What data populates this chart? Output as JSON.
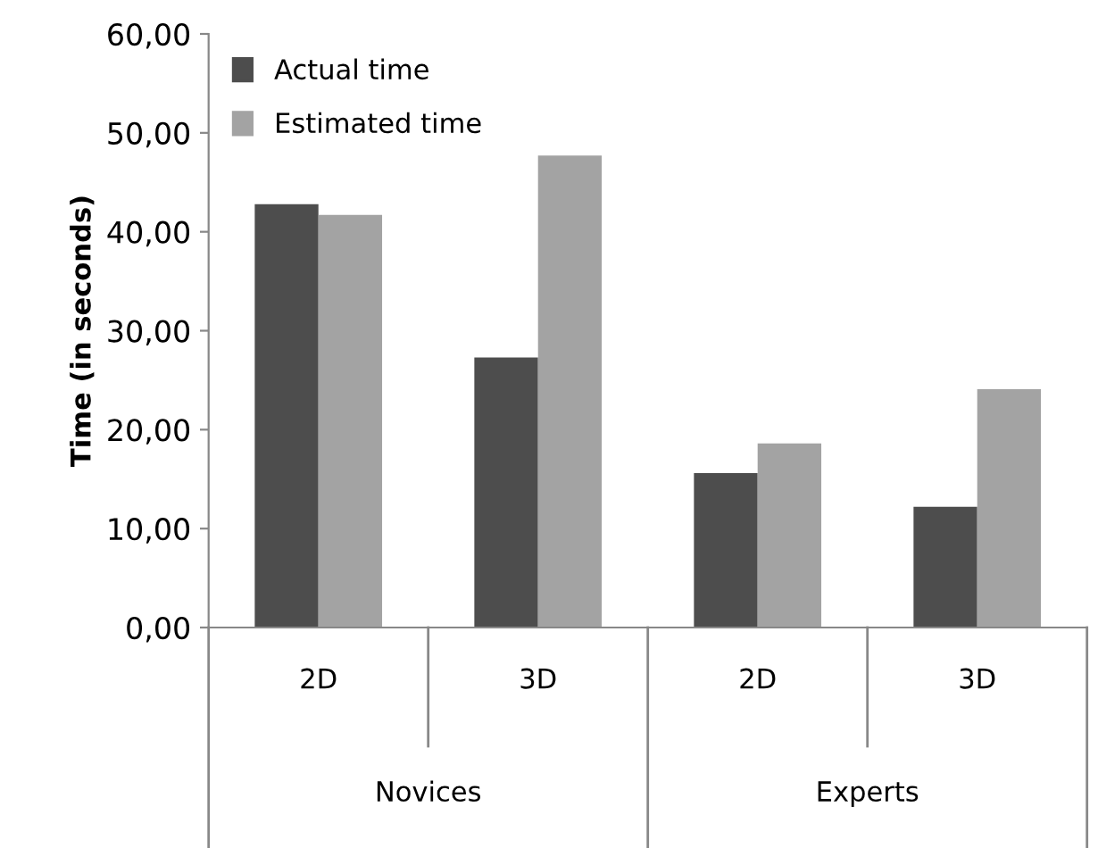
{
  "chart_data": {
    "type": "bar",
    "ylabel": "Time (in seconds)",
    "categories": [
      "2D",
      "3D",
      "2D",
      "3D"
    ],
    "series": [
      {
        "name": "Actual time",
        "color": "#4d4d4d",
        "values": [
          42.8,
          27.3,
          15.6,
          12.2
        ]
      },
      {
        "name": "Estimated time",
        "color": "#a3a3a3",
        "values": [
          41.7,
          47.7,
          18.6,
          24.1
        ]
      }
    ],
    "annotations": [
      "Novices",
      "Experts"
    ],
    "ylim": [
      0,
      60
    ],
    "yticks": [
      {
        "value": 0,
        "label": "0,00"
      },
      {
        "value": 10,
        "label": "10,00"
      },
      {
        "value": 20,
        "label": "20,00"
      },
      {
        "value": 30,
        "label": "30,00"
      },
      {
        "value": 40,
        "label": "40,00"
      },
      {
        "value": 50,
        "label": "50,00"
      },
      {
        "value": 60,
        "label": "60,00"
      }
    ],
    "legend": "top left",
    "grid": false
  }
}
